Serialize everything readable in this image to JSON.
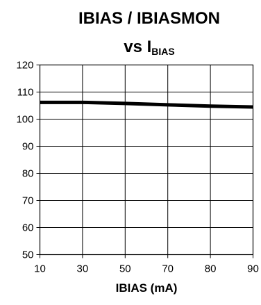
{
  "chart_data": {
    "type": "line",
    "title": "IBIAS / IBIASMON",
    "subtitle_prefix": "vs I",
    "subtitle_subscript": "BIAS",
    "xlabel": "IBIAS (mA)",
    "ylabel": "",
    "x_tick_labels": [
      "10",
      "30",
      "50",
      "70",
      "80",
      "90"
    ],
    "y_tick_labels": [
      "120",
      "110",
      "100",
      "90",
      "80",
      "70",
      "60",
      "50"
    ],
    "ylim": [
      50,
      120
    ],
    "grid": true,
    "series": [
      {
        "color": "#000000",
        "x": [
          "10",
          "30",
          "50",
          "70",
          "80",
          "90"
        ],
        "y": [
          106.2,
          106.2,
          105.8,
          105.3,
          104.8,
          104.5
        ]
      }
    ]
  }
}
